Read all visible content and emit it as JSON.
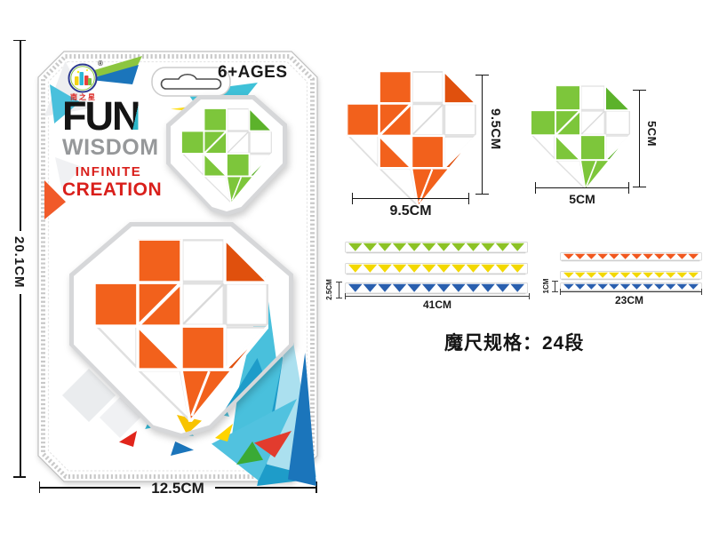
{
  "colors": {
    "orange": "#F2611C",
    "orange_dark": "#E0500D",
    "green": "#7DC63B",
    "green_dark": "#5CB22B",
    "yellow": "#F3D800",
    "blue": "#2A5FAE",
    "strip_green": "#8CC226",
    "strip_orange": "#F1581F",
    "teal": "#3FC1D8",
    "deep_blue": "#1B75BB",
    "brand_red": "#D91F1B",
    "gray_label": "#96989A",
    "ink": "#1A1A1A"
  },
  "card": {
    "logo": {
      "registered": "®",
      "brand_cn": "南之星"
    },
    "age_badge": "6+AGES",
    "title": {
      "line1": "FUN",
      "line2": "WISDOM",
      "line3": "INFINITE",
      "line4": "CREATION"
    },
    "dims": {
      "height": "20.1CM",
      "width": "12.5CM"
    }
  },
  "figures": {
    "orange_puzzle": {
      "height_label": "9.5CM",
      "width_label": "9.5CM"
    },
    "green_puzzle": {
      "height_label": "5CM",
      "width_label": "5CM"
    },
    "left_strips": {
      "rows": [
        "strip_green",
        "yellow",
        "blue"
      ],
      "triangles_per_row": 12,
      "length_label": "41CM",
      "height_label": "2.5CM"
    },
    "right_strips": {
      "rows": [
        "strip_orange",
        "yellow",
        "blue"
      ],
      "triangles_per_row": 12,
      "length_label": "23CM",
      "height_label": "1CM"
    }
  },
  "caption": "魔尺规格：24段"
}
